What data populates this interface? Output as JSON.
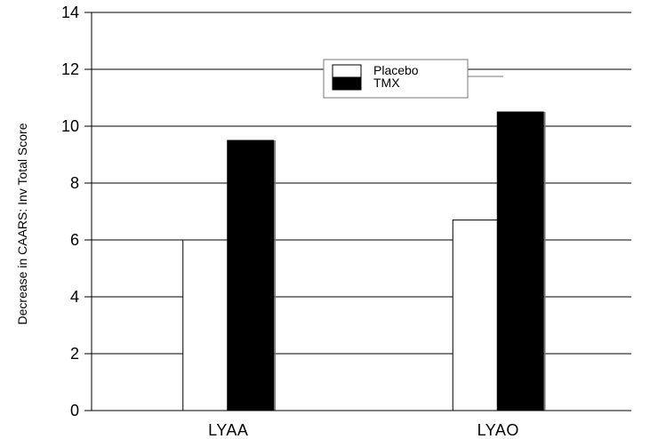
{
  "chart_data": {
    "type": "bar",
    "categories": [
      "LYAA",
      "LYAO"
    ],
    "series": [
      {
        "name": "Placebo",
        "values": [
          6.0,
          6.7
        ],
        "color": "#ffffff"
      },
      {
        "name": "TMX",
        "values": [
          9.5,
          10.5
        ],
        "color": "#000000"
      }
    ],
    "title": "",
    "xlabel": "",
    "ylabel": "Decrease in CAARS: Inv Total Score",
    "ylim": [
      0,
      14
    ],
    "yticks": [
      0,
      2,
      4,
      6,
      8,
      10,
      12,
      14
    ],
    "grid": "horizontal",
    "legend_position": "top-center"
  }
}
